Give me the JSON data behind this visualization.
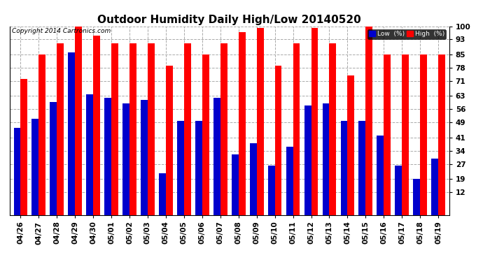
{
  "title": "Outdoor Humidity Daily High/Low 20140520",
  "copyright": "Copyright 2014 Cartronics.com",
  "dates": [
    "04/26",
    "04/27",
    "04/28",
    "04/29",
    "04/30",
    "05/01",
    "05/02",
    "05/03",
    "05/04",
    "05/05",
    "05/06",
    "05/07",
    "05/08",
    "05/09",
    "05/10",
    "05/11",
    "05/12",
    "05/13",
    "05/14",
    "05/15",
    "05/16",
    "05/17",
    "05/18",
    "05/19"
  ],
  "high": [
    72,
    85,
    91,
    100,
    95,
    91,
    91,
    91,
    79,
    91,
    85,
    91,
    97,
    99,
    79,
    91,
    99,
    91,
    74,
    100,
    85,
    85,
    85,
    85
  ],
  "low": [
    46,
    51,
    60,
    86,
    64,
    62,
    59,
    61,
    22,
    50,
    50,
    62,
    32,
    38,
    26,
    36,
    58,
    59,
    50,
    50,
    42,
    26,
    19,
    30
  ],
  "high_color": "#ff0000",
  "low_color": "#0000cc",
  "bg_color": "#ffffff",
  "plot_bg_color": "#ffffff",
  "grid_color": "#aaaaaa",
  "ylim_min": 0,
  "ylim_max": 100,
  "yticks": [
    12,
    19,
    27,
    34,
    41,
    49,
    56,
    63,
    71,
    78,
    85,
    93,
    100
  ],
  "bar_width": 0.38,
  "title_fontsize": 11,
  "tick_fontsize": 7.5,
  "legend_low_label": "Low  (%)",
  "legend_high_label": "High  (%)"
}
